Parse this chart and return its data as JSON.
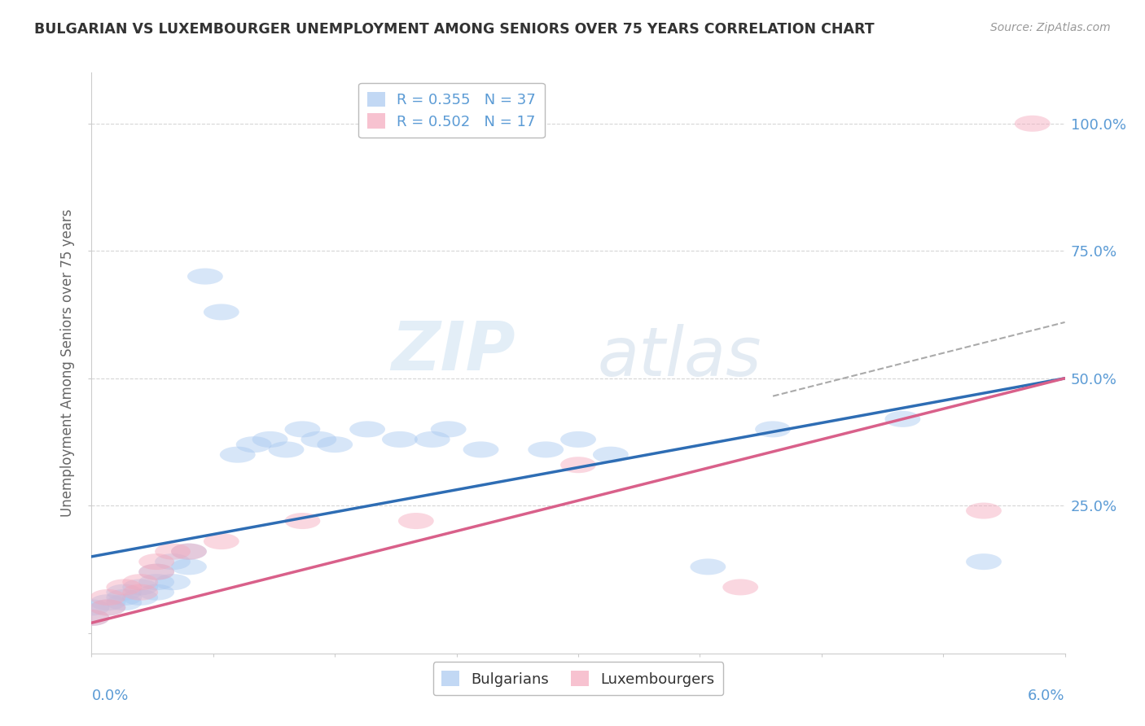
{
  "title": "BULGARIAN VS LUXEMBOURGER UNEMPLOYMENT AMONG SENIORS OVER 75 YEARS CORRELATION CHART",
  "source": "Source: ZipAtlas.com",
  "ylabel": "Unemployment Among Seniors over 75 years",
  "ytick_vals": [
    0.0,
    0.25,
    0.5,
    0.75,
    1.0
  ],
  "ytick_labels": [
    "",
    "25.0%",
    "50.0%",
    "75.0%",
    "100.0%"
  ],
  "xlim": [
    0.0,
    0.06
  ],
  "ylim": [
    -0.04,
    1.1
  ],
  "legend_entries": [
    {
      "label": "R = 0.355   N = 37",
      "color": "#A8C8F0"
    },
    {
      "label": "R = 0.502   N = 17",
      "color": "#F4A8BC"
    }
  ],
  "bulgarians_x": [
    0.0,
    0.0,
    0.001,
    0.001,
    0.002,
    0.002,
    0.002,
    0.003,
    0.003,
    0.004,
    0.004,
    0.004,
    0.005,
    0.005,
    0.006,
    0.006,
    0.007,
    0.008,
    0.009,
    0.01,
    0.011,
    0.012,
    0.013,
    0.014,
    0.015,
    0.017,
    0.019,
    0.021,
    0.022,
    0.024,
    0.028,
    0.03,
    0.032,
    0.038,
    0.042,
    0.05,
    0.055
  ],
  "bulgarians_y": [
    0.03,
    0.05,
    0.06,
    0.05,
    0.07,
    0.06,
    0.08,
    0.07,
    0.09,
    0.08,
    0.1,
    0.12,
    0.1,
    0.14,
    0.13,
    0.16,
    0.7,
    0.63,
    0.35,
    0.37,
    0.38,
    0.36,
    0.4,
    0.38,
    0.37,
    0.4,
    0.38,
    0.38,
    0.4,
    0.36,
    0.36,
    0.38,
    0.35,
    0.13,
    0.4,
    0.42,
    0.14
  ],
  "luxembourgers_x": [
    0.0,
    0.001,
    0.001,
    0.002,
    0.003,
    0.003,
    0.004,
    0.004,
    0.005,
    0.006,
    0.008,
    0.013,
    0.02,
    0.03,
    0.04,
    0.055,
    0.058
  ],
  "luxembourgers_y": [
    0.03,
    0.05,
    0.07,
    0.09,
    0.08,
    0.1,
    0.12,
    0.14,
    0.16,
    0.16,
    0.18,
    0.22,
    0.22,
    0.33,
    0.09,
    0.24,
    1.0
  ],
  "blue_line": {
    "x0": 0.0,
    "y0": 0.15,
    "x1": 0.06,
    "y1": 0.5
  },
  "pink_line": {
    "x0": 0.0,
    "y0": 0.02,
    "x1": 0.06,
    "y1": 0.5
  },
  "dash_line": {
    "x0": 0.042,
    "y0": 0.465,
    "x1": 0.06,
    "y1": 0.61
  },
  "blue_color": "#A8C8F0",
  "pink_color": "#F4A8BC",
  "blue_line_color": "#2E6DB4",
  "pink_line_color": "#D9608A",
  "watermark_zip": "ZIP",
  "watermark_atlas": "atlas",
  "background_color": "#FFFFFF"
}
